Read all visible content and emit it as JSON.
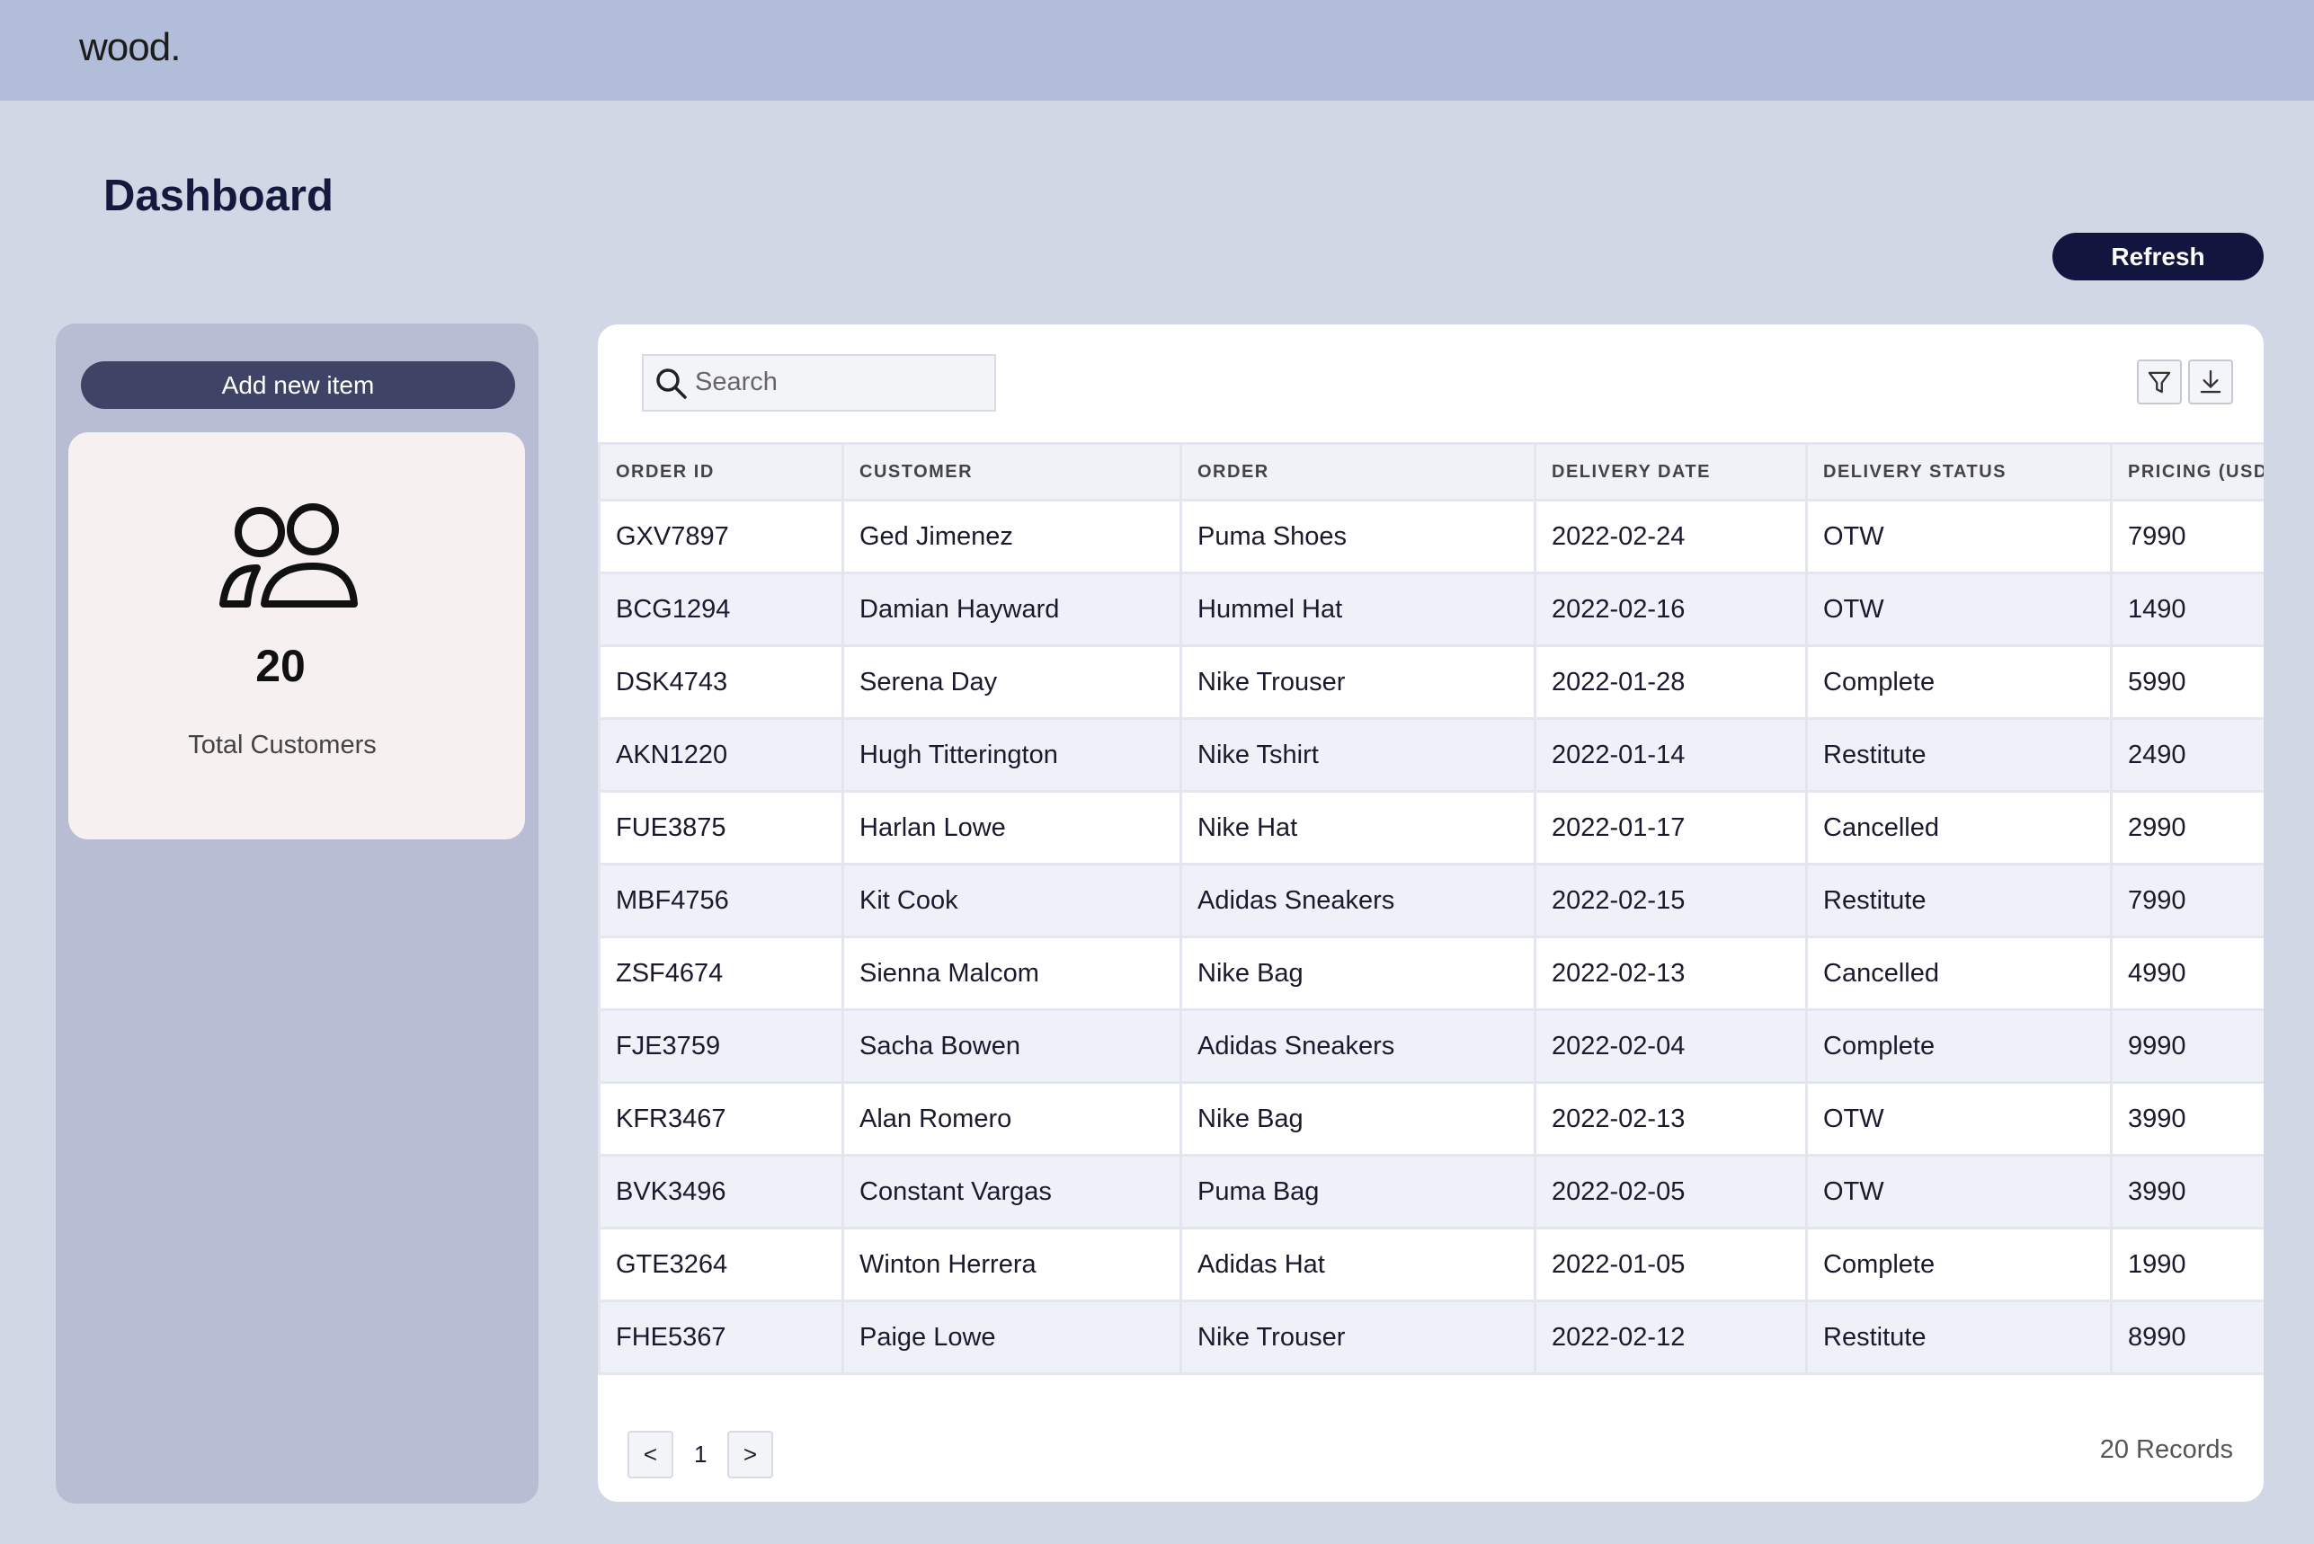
{
  "header": {
    "logo": "wood."
  },
  "page": {
    "title": "Dashboard"
  },
  "buttons": {
    "refresh": "Refresh"
  },
  "sidebar": {
    "add_button": "Add new item",
    "summary": {
      "value": 20,
      "label": "Total Customers"
    }
  },
  "search": {
    "placeholder": "Search"
  },
  "table": {
    "columns": [
      "ORDER ID",
      "CUSTOMER",
      "ORDER",
      "DELIVERY DATE",
      "DELIVERY STATUS",
      "PRICING (USD"
    ],
    "rows": [
      [
        "GXV7897",
        "Ged Jimenez",
        "Puma Shoes",
        "2022-02-24",
        "OTW",
        7990
      ],
      [
        "BCG1294",
        "Damian Hayward",
        "Hummel Hat",
        "2022-02-16",
        "OTW",
        1490
      ],
      [
        "DSK4743",
        "Serena Day",
        "Nike Trouser",
        "2022-01-28",
        "Complete",
        5990
      ],
      [
        "AKN1220",
        "Hugh Titterington",
        "Nike Tshirt",
        "2022-01-14",
        "Restitute",
        2490
      ],
      [
        "FUE3875",
        "Harlan Lowe",
        "Nike Hat",
        "2022-01-17",
        "Cancelled",
        2990
      ],
      [
        "MBF4756",
        "Kit Cook",
        "Adidas Sneakers",
        "2022-02-15",
        "Restitute",
        7990
      ],
      [
        "ZSF4674",
        "Sienna Malcom",
        "Nike Bag",
        "2022-02-13",
        "Cancelled",
        4990
      ],
      [
        "FJE3759",
        "Sacha Bowen",
        "Adidas Sneakers",
        "2022-02-04",
        "Complete",
        9990
      ],
      [
        "KFR3467",
        "Alan Romero",
        "Nike Bag",
        "2022-02-13",
        "OTW",
        3990
      ],
      [
        "BVK3496",
        "Constant Vargas",
        "Puma Bag",
        "2022-02-05",
        "OTW",
        3990
      ],
      [
        "GTE3264",
        "Winton Herrera",
        "Adidas Hat",
        "2022-01-05",
        "Complete",
        1990
      ],
      [
        "FHE5367",
        "Paige Lowe",
        "Nike Trouser",
        "2022-02-12",
        "Restitute",
        8990
      ]
    ]
  },
  "pagination": {
    "prev": "<",
    "page": "1",
    "next": ">",
    "records": "20 Records"
  }
}
